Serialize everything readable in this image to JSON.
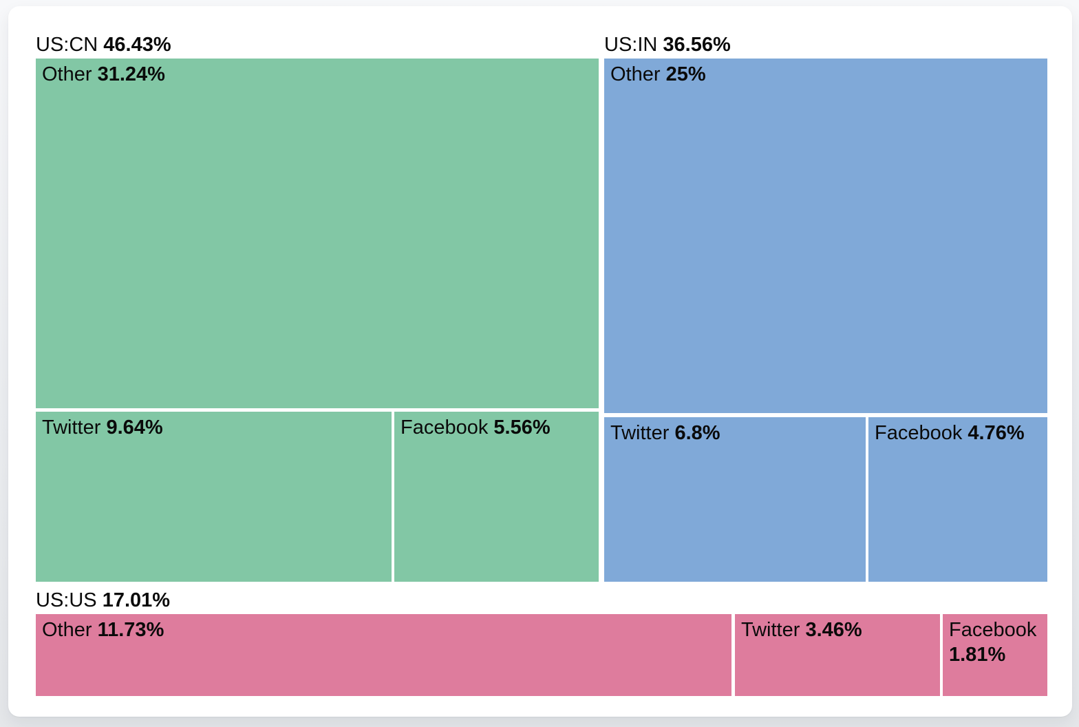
{
  "colors": {
    "us_cn": "#82c7a5",
    "us_in": "#80a9d8",
    "us_us": "#de7c9d",
    "card_background": "#ffffff",
    "page_background": "#eceef1",
    "text": "#0a0a0a"
  },
  "chart_data": {
    "type": "treemap",
    "title": "",
    "value_unit": "percent",
    "legend": "none",
    "groups": [
      {
        "name": "US:CN",
        "pct": "46.43%",
        "value": 46.43,
        "color": "#82c7a5",
        "children": [
          {
            "name": "Other",
            "pct": "31.24%",
            "value": 31.24
          },
          {
            "name": "Twitter",
            "pct": "9.64%",
            "value": 9.64
          },
          {
            "name": "Facebook",
            "pct": "5.56%",
            "value": 5.56
          }
        ]
      },
      {
        "name": "US:IN",
        "pct": "36.56%",
        "value": 36.56,
        "color": "#80a9d8",
        "children": [
          {
            "name": "Other",
            "pct": "25%",
            "value": 25
          },
          {
            "name": "Twitter",
            "pct": "6.8%",
            "value": 6.8
          },
          {
            "name": "Facebook",
            "pct": "4.76%",
            "value": 4.76
          }
        ]
      },
      {
        "name": "US:US",
        "pct": "17.01%",
        "value": 17.01,
        "color": "#de7c9d",
        "children": [
          {
            "name": "Other",
            "pct": "11.73%",
            "value": 11.73
          },
          {
            "name": "Twitter",
            "pct": "3.46%",
            "value": 3.46
          },
          {
            "name": "Facebook",
            "pct": "1.81%",
            "value": 1.81
          }
        ]
      }
    ]
  }
}
